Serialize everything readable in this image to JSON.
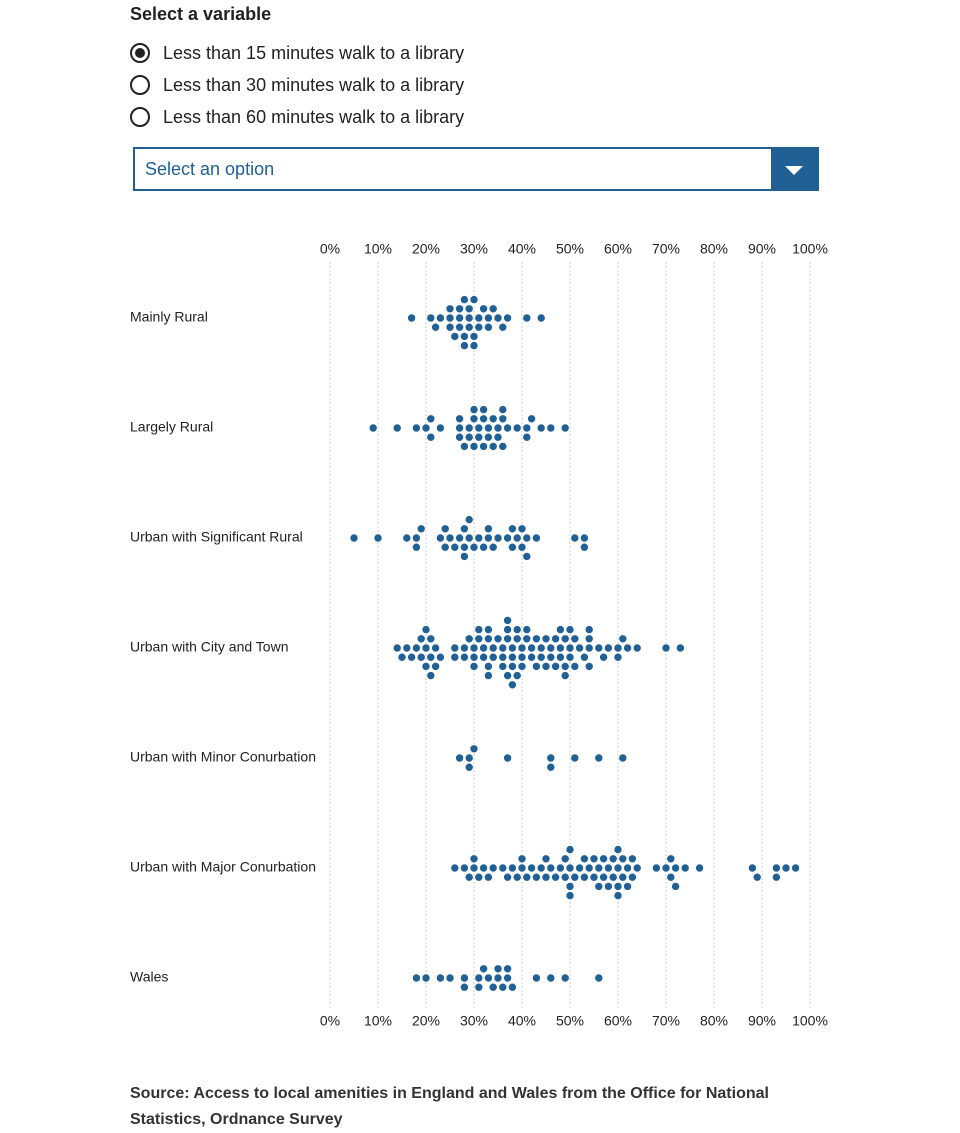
{
  "ui": {
    "legend": "Select a variable",
    "options": [
      "Less than 15 minutes walk to a library",
      "Less than 30 minutes walk to a library",
      "Less than 60 minutes walk to a library"
    ],
    "selected": 0,
    "dropdown": "Select an option",
    "source": "Source: Access to local amenities in England and Wales from the Office for National Statistics, Ordnance Survey"
  },
  "chart_data": {
    "type": "beeswarm",
    "color": "#206095",
    "grid": true,
    "categories": [
      "Mainly Rural",
      "Largely Rural",
      "Urban with Significant Rural",
      "Urban with City and Town",
      "Urban with Minor Conurbation",
      "Urban with Major Conurbation",
      "Wales"
    ],
    "values": [
      [
        17,
        21,
        22,
        23,
        25,
        25,
        25,
        26,
        27,
        27,
        27,
        28,
        28,
        28,
        29,
        29,
        29,
        30,
        30,
        30,
        31,
        31,
        32,
        33,
        33,
        34,
        35,
        36,
        37,
        41,
        44
      ],
      [
        9,
        14,
        18,
        20,
        21,
        21,
        23,
        27,
        27,
        27,
        28,
        29,
        29,
        30,
        30,
        30,
        31,
        31,
        32,
        32,
        32,
        33,
        33,
        34,
        34,
        35,
        35,
        36,
        36,
        36,
        37,
        39,
        41,
        41,
        42,
        44,
        46,
        49
      ],
      [
        5,
        10,
        16,
        18,
        18,
        19,
        23,
        24,
        24,
        25,
        26,
        27,
        28,
        28,
        28,
        29,
        29,
        30,
        31,
        32,
        33,
        33,
        34,
        35,
        37,
        38,
        38,
        39,
        40,
        40,
        41,
        41,
        43,
        51,
        53,
        53
      ],
      [
        14,
        15,
        16,
        17,
        18,
        19,
        19,
        20,
        20,
        20,
        21,
        21,
        21,
        22,
        22,
        23,
        26,
        26,
        28,
        28,
        29,
        30,
        30,
        30,
        31,
        31,
        32,
        32,
        33,
        33,
        33,
        33,
        34,
        34,
        35,
        36,
        36,
        36,
        37,
        37,
        37,
        37,
        38,
        38,
        38,
        38,
        39,
        39,
        39,
        40,
        40,
        40,
        41,
        41,
        42,
        42,
        43,
        43,
        44,
        44,
        45,
        45,
        46,
        46,
        47,
        47,
        48,
        48,
        48,
        49,
        49,
        49,
        50,
        50,
        50,
        51,
        51,
        52,
        53,
        54,
        54,
        54,
        54,
        56,
        57,
        58,
        60,
        60,
        61,
        62,
        64,
        70,
        73
      ],
      [
        27,
        29,
        29,
        30,
        37,
        46,
        46,
        51,
        56,
        61
      ],
      [
        26,
        28,
        29,
        30,
        30,
        31,
        32,
        33,
        34,
        36,
        37,
        38,
        39,
        40,
        40,
        41,
        42,
        43,
        44,
        45,
        45,
        46,
        47,
        48,
        49,
        49,
        50,
        50,
        50,
        50,
        51,
        52,
        53,
        53,
        54,
        55,
        55,
        56,
        56,
        57,
        57,
        58,
        58,
        59,
        59,
        60,
        60,
        60,
        60,
        61,
        61,
        62,
        62,
        63,
        63,
        64,
        68,
        70,
        71,
        71,
        72,
        72,
        74,
        77,
        88,
        89,
        93,
        93,
        95,
        97
      ],
      [
        18,
        20,
        23,
        25,
        28,
        28,
        31,
        31,
        32,
        33,
        34,
        35,
        35,
        36,
        37,
        37,
        38,
        43,
        46,
        49,
        56
      ]
    ],
    "xlim": [
      0,
      100
    ],
    "xticks": [
      {
        "value": 0,
        "label": "0%"
      },
      {
        "value": 10,
        "label": "10%"
      },
      {
        "value": 20,
        "label": "20%"
      },
      {
        "value": 30,
        "label": "30%"
      },
      {
        "value": 40,
        "label": "40%"
      },
      {
        "value": 50,
        "label": "50%"
      },
      {
        "value": 60,
        "label": "60%"
      },
      {
        "value": 70,
        "label": "70%"
      },
      {
        "value": 80,
        "label": "80%"
      },
      {
        "value": 90,
        "label": "90%"
      },
      {
        "value": 100,
        "label": "100%"
      }
    ]
  }
}
